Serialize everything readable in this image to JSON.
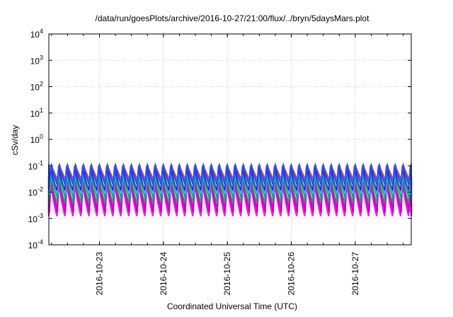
{
  "chart_data": {
    "type": "line",
    "title": "/data/run/goesPlots/archive/2016-10-27/21:00/flux/../bryn/5daysMars.plot",
    "xlabel": "Coordinated Universal Time (UTC)",
    "ylabel": "cSv/day",
    "y_scale": "log",
    "ylim": [
      0.0001,
      10000
    ],
    "xlim": [
      "2016-10-22T05:00",
      "2016-10-27T21:00"
    ],
    "grid": true,
    "y_ticks": [
      {
        "base": "10",
        "exp": "-4"
      },
      {
        "base": "10",
        "exp": "-3"
      },
      {
        "base": "10",
        "exp": "-2"
      },
      {
        "base": "10",
        "exp": "-1"
      },
      {
        "base": "10",
        "exp": "0"
      },
      {
        "base": "10",
        "exp": "1"
      },
      {
        "base": "10",
        "exp": "2"
      },
      {
        "base": "10",
        "exp": "3"
      },
      {
        "base": "10",
        "exp": "4"
      }
    ],
    "x_ticks": [
      "2016-10-23",
      "2016-10-24",
      "2016-10-25",
      "2016-10-26",
      "2016-10-27"
    ],
    "cycle_hours": 3,
    "series": [
      {
        "color": "#ff00ff",
        "peak": 0.03,
        "trough": 0.0013
      },
      {
        "color": "#cc00cc",
        "peak": 0.04,
        "trough": 0.0018
      },
      {
        "color": "#ff3333",
        "peak": 0.12,
        "trough": 0.03
      },
      {
        "color": "#00bb44",
        "peak": 0.05,
        "trough": 0.004
      },
      {
        "color": "#009999",
        "peak": 0.06,
        "trough": 0.006
      },
      {
        "color": "#00cccc",
        "peak": 0.07,
        "trough": 0.008
      },
      {
        "color": "#6600cc",
        "peak": 0.09,
        "trough": 0.012
      },
      {
        "color": "#3333ff",
        "peak": 0.1,
        "trough": 0.018
      },
      {
        "color": "#0066ff",
        "peak": 0.11,
        "trough": 0.022
      }
    ]
  }
}
